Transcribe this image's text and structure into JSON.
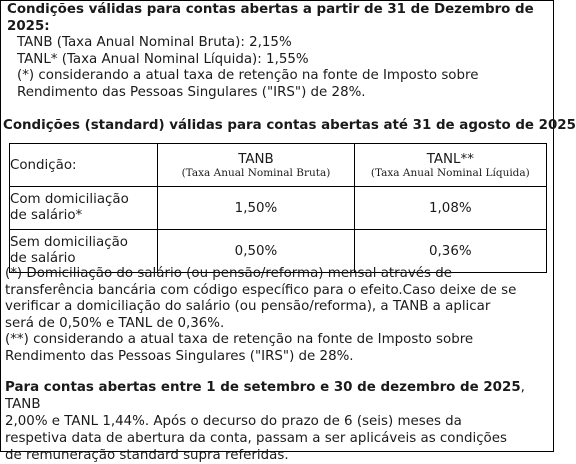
{
  "section1": {
    "heading_line1": "Condições válidas para contas abertas a partir de 31 de Dezembro de",
    "heading_line2": "2025:",
    "tanb_line": "TANB (Taxa Anual Nominal Bruta): 2,15%",
    "tanl_line": "TANL* (Taxa Anual Nominal Líquida): 1,55%",
    "note_line1": "(*) considerando a atual taxa de retenção na fonte de Imposto sobre",
    "note_line2": "Rendimento das Pessoas Singulares (\"IRS\") de 28%."
  },
  "section2": {
    "heading": "Condições (standard) válidas para contas abertas até 31 de agosto de 2025"
  },
  "table": {
    "header": {
      "condition": "Condição:",
      "tanb": "TANB",
      "tanb_sub": "(Taxa Anual Nominal Bruta)",
      "tanl": "TANL**",
      "tanl_sub": "(Taxa Anual Nominal Líquida)"
    },
    "rows": [
      {
        "cond_line1": "Com domiciliação",
        "cond_line2": "de salário*",
        "tanb": "1,50%",
        "tanl": "1,08%"
      },
      {
        "cond_line1": "Sem domiciliação",
        "cond_line2": "de salário",
        "tanb": "0,50%",
        "tanl": "0,36%"
      }
    ]
  },
  "notes": {
    "line1": "(*) Domiciliação do salário (ou pensão/reforma) mensal através de",
    "line2": "transferência bancária com código específico para o efeito.Caso deixe de se",
    "line3": "verificar a domiciliação do salário (ou pensão/reforma), a TANB a aplicar",
    "line4": "será de 0,50% e TANL de 0,36%.",
    "line5": "(**) considerando a atual taxa de retenção na fonte de Imposto sobre",
    "line6": "Rendimento das Pessoas Singulares (\"IRS\") de 28%."
  },
  "section3": {
    "bold_part": "Para contas abertas entre 1 de setembro e 30 de dezembro de 2025",
    "line1_rest": ", TANB",
    "line2": "2,00% e TANL 1,44%. Após o decurso do prazo de 6 (seis) meses da",
    "line3": "respetiva data de abertura da conta, passam a ser aplicáveis as condições",
    "line4": "de remuneração standard supra referidas."
  }
}
